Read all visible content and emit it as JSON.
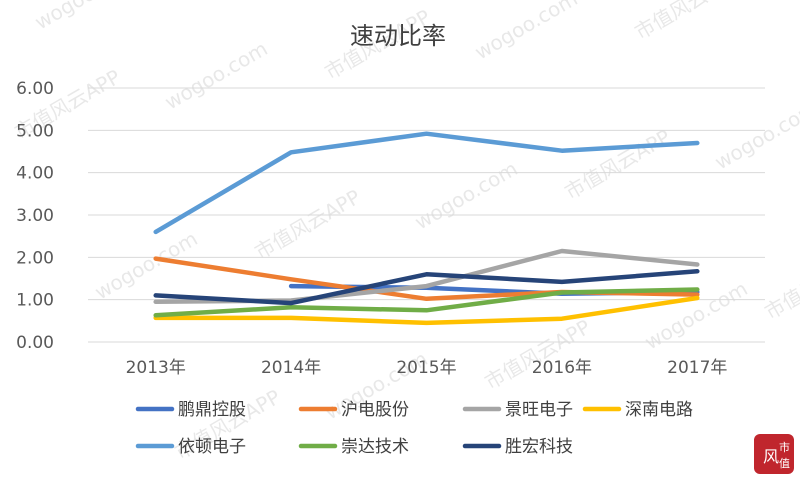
{
  "chart_data": {
    "type": "line",
    "title": "速动比率",
    "categories": [
      "2013年",
      "2014年",
      "2015年",
      "2016年",
      "2017年"
    ],
    "ylim": [
      0,
      6
    ],
    "yticks": [
      "0.00",
      "1.00",
      "2.00",
      "3.00",
      "4.00",
      "5.00",
      "6.00"
    ],
    "grid": true,
    "legend_position": "bottom",
    "series": [
      {
        "name": "鹏鼎控股",
        "color": "#4472C4",
        "values": [
          null,
          1.32,
          1.28,
          1.14,
          1.18
        ]
      },
      {
        "name": "沪电股份",
        "color": "#ED7D31",
        "values": [
          1.97,
          1.48,
          1.02,
          1.18,
          1.12
        ]
      },
      {
        "name": "景旺电子",
        "color": "#A5A5A5",
        "values": [
          0.95,
          0.98,
          1.32,
          2.15,
          1.83
        ]
      },
      {
        "name": "深南电路",
        "color": "#FFC000",
        "values": [
          0.57,
          0.57,
          0.45,
          0.55,
          1.04
        ]
      },
      {
        "name": "依顿电子",
        "color": "#5B9BD5",
        "values": [
          2.6,
          4.48,
          4.92,
          4.52,
          4.7
        ]
      },
      {
        "name": "崇达技术",
        "color": "#70AD47",
        "values": [
          0.63,
          0.82,
          0.75,
          1.17,
          1.24
        ]
      },
      {
        "name": "胜宏科技",
        "color": "#264478",
        "values": [
          1.1,
          0.92,
          1.6,
          1.42,
          1.67
        ]
      }
    ]
  },
  "watermark": {
    "text": "市值风云APP",
    "site": "wogoo.com",
    "seal_chars": [
      "风",
      "市",
      "值"
    ],
    "seal_color": "#C0262D"
  }
}
